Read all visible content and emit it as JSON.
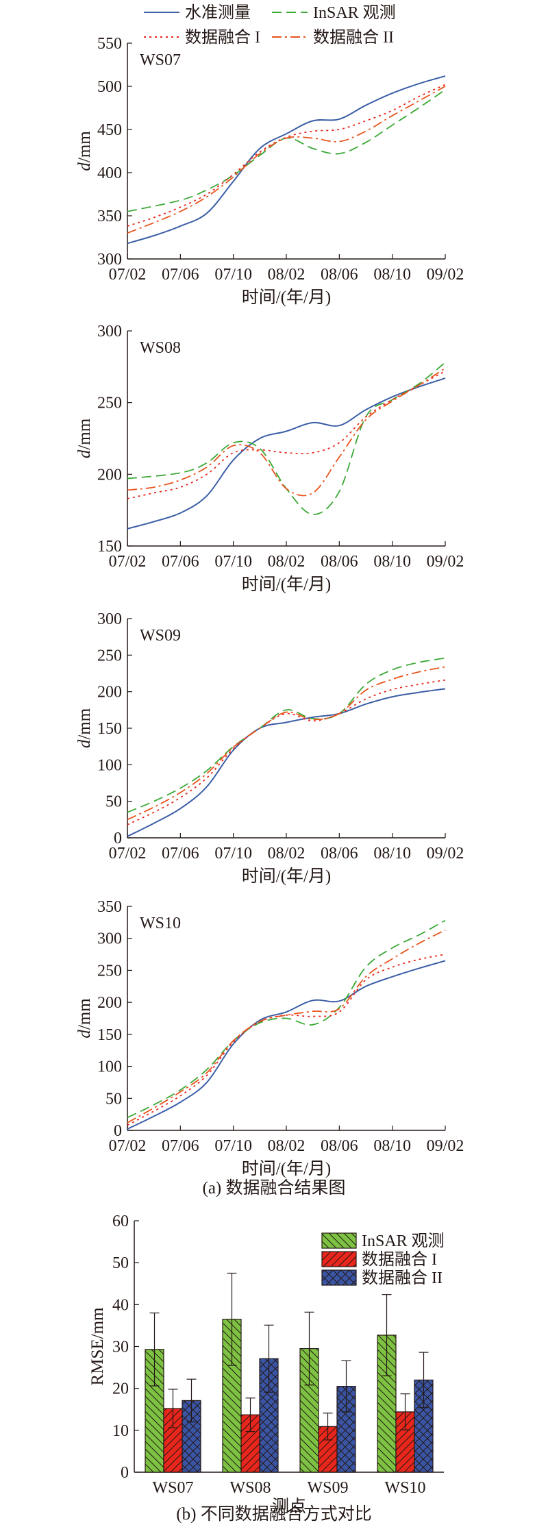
{
  "figure": {
    "legend_top": [
      {
        "label": "水准测量",
        "color": "#3b5ea6",
        "dash": "solid"
      },
      {
        "label": "InSAR 观测",
        "color": "#3aa935",
        "dash": "dashed"
      },
      {
        "label": "数据融合 I",
        "color": "#e8261c",
        "dash": "dotted"
      },
      {
        "label": "数据融合 II",
        "color": "#e8541c",
        "dash": "dashdot"
      }
    ],
    "caption_a": "(a) 数据融合结果图",
    "caption_b": "(b) 不同数据融合方式对比",
    "colors": {
      "level": "#3b5ea6",
      "insar": "#3aa935",
      "fusion1": "#e8261c",
      "fusion2": "#e8541c",
      "bar_insar": "#7dc242",
      "bar_f1": "#e8261c",
      "bar_f2": "#3a55a4"
    }
  },
  "chart_data": [
    {
      "type": "line",
      "panel": "WS07",
      "ylabel_italic": "d",
      "ylabel_unit": "/mm",
      "xlabel": "时间/(年/月)",
      "xticks": [
        "07/02",
        "07/06",
        "07/10",
        "08/02",
        "08/06",
        "08/10",
        "09/02"
      ],
      "ylim": [
        300,
        550
      ],
      "yticks": [
        300,
        350,
        400,
        450,
        500,
        550
      ],
      "series": [
        {
          "name": "水准测量",
          "key": "level",
          "points": [
            [
              0,
              318
            ],
            [
              0.5,
              327
            ],
            [
              1,
              338
            ],
            [
              1.5,
              353
            ],
            [
              2,
              390
            ],
            [
              2.5,
              428
            ],
            [
              3,
              445
            ],
            [
              3.5,
              460
            ],
            [
              4,
              462
            ],
            [
              4.5,
              478
            ],
            [
              5,
              492
            ],
            [
              5.5,
              503
            ],
            [
              6,
              512
            ]
          ]
        },
        {
          "name": "InSAR 观测",
          "key": "insar",
          "points": [
            [
              0,
              355
            ],
            [
              1,
              368
            ],
            [
              1.5,
              380
            ],
            [
              2,
              397
            ],
            [
              2.5,
              420
            ],
            [
              3,
              440
            ],
            [
              3.5,
              428
            ],
            [
              4,
              422
            ],
            [
              4.5,
              435
            ],
            [
              5,
              455
            ],
            [
              5.5,
              475
            ],
            [
              6,
              496
            ]
          ]
        },
        {
          "name": "数据融合 I",
          "key": "fusion1",
          "points": [
            [
              0,
              338
            ],
            [
              0.5,
              348
            ],
            [
              1,
              360
            ],
            [
              1.5,
              375
            ],
            [
              2,
              398
            ],
            [
              2.5,
              424
            ],
            [
              3,
              441
            ],
            [
              3.5,
              448
            ],
            [
              4,
              450
            ],
            [
              4.5,
              460
            ],
            [
              5,
              472
            ],
            [
              5.5,
              488
            ],
            [
              6,
              502
            ]
          ]
        },
        {
          "name": "数据融合 II",
          "key": "fusion2",
          "points": [
            [
              0,
              330
            ],
            [
              0.5,
              342
            ],
            [
              1,
              355
            ],
            [
              1.5,
              372
            ],
            [
              2,
              395
            ],
            [
              2.5,
              422
            ],
            [
              3,
              440
            ],
            [
              3.5,
              440
            ],
            [
              4,
              436
            ],
            [
              4.5,
              448
            ],
            [
              5,
              466
            ],
            [
              5.5,
              483
            ],
            [
              6,
              500
            ]
          ]
        }
      ]
    },
    {
      "type": "line",
      "panel": "WS08",
      "ylabel_italic": "d",
      "ylabel_unit": "/mm",
      "xlabel": "时间/(年/月)",
      "xticks": [
        "07/02",
        "07/06",
        "07/10",
        "08/02",
        "08/06",
        "08/10",
        "09/02"
      ],
      "ylim": [
        150,
        300
      ],
      "yticks": [
        150,
        200,
        250,
        300
      ],
      "series": [
        {
          "name": "水准测量",
          "key": "level",
          "points": [
            [
              0,
              162
            ],
            [
              0.5,
              167
            ],
            [
              1,
              173
            ],
            [
              1.5,
              185
            ],
            [
              2,
              210
            ],
            [
              2.5,
              225
            ],
            [
              3,
              230
            ],
            [
              3.5,
              236
            ],
            [
              4,
              234
            ],
            [
              4.5,
              245
            ],
            [
              5,
              254
            ],
            [
              5.5,
              261
            ],
            [
              6,
              267
            ]
          ]
        },
        {
          "name": "InSAR 观测",
          "key": "insar",
          "points": [
            [
              0,
              197
            ],
            [
              1,
              201
            ],
            [
              1.5,
              208
            ],
            [
              2,
              222
            ],
            [
              2.5,
              218
            ],
            [
              3,
              190
            ],
            [
              3.5,
              172
            ],
            [
              4,
              188
            ],
            [
              4.5,
              240
            ],
            [
              5,
              252
            ],
            [
              5.5,
              263
            ],
            [
              6,
              278
            ]
          ]
        },
        {
          "name": "数据融合 I",
          "key": "fusion1",
          "points": [
            [
              0,
              183
            ],
            [
              0.5,
              187
            ],
            [
              1,
              191
            ],
            [
              1.5,
              200
            ],
            [
              2,
              215
            ],
            [
              2.5,
              217
            ],
            [
              3,
              215
            ],
            [
              3.5,
              215
            ],
            [
              4,
              222
            ],
            [
              4.5,
              240
            ],
            [
              5,
              252
            ],
            [
              5.5,
              262
            ],
            [
              6,
              272
            ]
          ]
        },
        {
          "name": "数据融合 II",
          "key": "fusion2",
          "points": [
            [
              0,
              189
            ],
            [
              0.5,
              191
            ],
            [
              1,
              196
            ],
            [
              1.5,
              205
            ],
            [
              2,
              220
            ],
            [
              2.5,
              215
            ],
            [
              3,
              190
            ],
            [
              3.5,
              187
            ],
            [
              4,
              212
            ],
            [
              4.5,
              238
            ],
            [
              5,
              251
            ],
            [
              5.5,
              262
            ],
            [
              6,
              274
            ]
          ]
        }
      ]
    },
    {
      "type": "line",
      "panel": "WS09",
      "ylabel_italic": "d",
      "ylabel_unit": "/mm",
      "xlabel": "时间/(年/月)",
      "xticks": [
        "07/02",
        "07/06",
        "07/10",
        "08/02",
        "08/06",
        "08/10",
        "09/02"
      ],
      "ylim": [
        0,
        300
      ],
      "yticks": [
        0,
        50,
        100,
        150,
        200,
        250,
        300
      ],
      "series": [
        {
          "name": "水准测量",
          "key": "level",
          "points": [
            [
              0,
              2
            ],
            [
              0.5,
              20
            ],
            [
              1,
              40
            ],
            [
              1.5,
              70
            ],
            [
              2,
              120
            ],
            [
              2.5,
              150
            ],
            [
              3,
              158
            ],
            [
              3.5,
              165
            ],
            [
              4,
              170
            ],
            [
              4.5,
              183
            ],
            [
              5,
              193
            ],
            [
              5.5,
              199
            ],
            [
              6,
              204
            ]
          ]
        },
        {
          "name": "InSAR 观测",
          "key": "insar",
          "points": [
            [
              0,
              35
            ],
            [
              0.5,
              50
            ],
            [
              1,
              68
            ],
            [
              1.5,
              92
            ],
            [
              2,
              125
            ],
            [
              2.5,
              150
            ],
            [
              3,
              175
            ],
            [
              3.5,
              163
            ],
            [
              4,
              170
            ],
            [
              4.5,
              210
            ],
            [
              5,
              230
            ],
            [
              5.5,
              240
            ],
            [
              6,
              246
            ]
          ]
        },
        {
          "name": "数据融合 I",
          "key": "fusion1",
          "points": [
            [
              0,
              18
            ],
            [
              0.5,
              35
            ],
            [
              1,
              55
            ],
            [
              1.5,
              82
            ],
            [
              2,
              122
            ],
            [
              2.5,
              150
            ],
            [
              3,
              170
            ],
            [
              3.5,
              160
            ],
            [
              4,
              170
            ],
            [
              4.5,
              190
            ],
            [
              5,
              203
            ],
            [
              5.5,
              210
            ],
            [
              6,
              216
            ]
          ]
        },
        {
          "name": "数据融合 II",
          "key": "fusion2",
          "points": [
            [
              0,
              25
            ],
            [
              0.5,
              42
            ],
            [
              1,
              62
            ],
            [
              1.5,
              88
            ],
            [
              2,
              124
            ],
            [
              2.5,
              150
            ],
            [
              3,
              172
            ],
            [
              3.5,
              162
            ],
            [
              4,
              170
            ],
            [
              4.5,
              202
            ],
            [
              5,
              217
            ],
            [
              5.5,
              227
            ],
            [
              6,
              234
            ]
          ]
        }
      ]
    },
    {
      "type": "line",
      "panel": "WS10",
      "ylabel_italic": "d",
      "ylabel_unit": "/mm",
      "xlabel": "时间/(年/月)",
      "xticks": [
        "07/02",
        "07/06",
        "07/10",
        "08/02",
        "08/06",
        "08/10",
        "09/02"
      ],
      "ylim": [
        0,
        350
      ],
      "yticks": [
        0,
        50,
        100,
        150,
        200,
        250,
        300,
        350
      ],
      "series": [
        {
          "name": "水准测量",
          "key": "level",
          "points": [
            [
              0,
              2
            ],
            [
              0.5,
              22
            ],
            [
              1,
              44
            ],
            [
              1.5,
              75
            ],
            [
              2,
              135
            ],
            [
              2.5,
              172
            ],
            [
              3,
              185
            ],
            [
              3.5,
              203
            ],
            [
              4,
              202
            ],
            [
              4.5,
              225
            ],
            [
              5,
              240
            ],
            [
              5.5,
              253
            ],
            [
              6,
              265
            ]
          ]
        },
        {
          "name": "InSAR 观测",
          "key": "insar",
          "points": [
            [
              0,
              20
            ],
            [
              0.5,
              40
            ],
            [
              1,
              63
            ],
            [
              1.5,
              95
            ],
            [
              2,
              140
            ],
            [
              2.5,
              168
            ],
            [
              3,
              175
            ],
            [
              3.5,
              165
            ],
            [
              4,
              192
            ],
            [
              4.5,
              255
            ],
            [
              5,
              285
            ],
            [
              5.5,
              305
            ],
            [
              6,
              328
            ]
          ]
        },
        {
          "name": "数据融合 I",
          "key": "fusion1",
          "points": [
            [
              0,
              8
            ],
            [
              0.5,
              30
            ],
            [
              1,
              54
            ],
            [
              1.5,
              86
            ],
            [
              2,
              138
            ],
            [
              2.5,
              170
            ],
            [
              3,
              180
            ],
            [
              3.5,
              178
            ],
            [
              4,
              185
            ],
            [
              4.5,
              235
            ],
            [
              5,
              255
            ],
            [
              5.5,
              267
            ],
            [
              6,
              275
            ]
          ]
        },
        {
          "name": "数据融合 II",
          "key": "fusion2",
          "points": [
            [
              0,
              12
            ],
            [
              0.5,
              35
            ],
            [
              1,
              60
            ],
            [
              1.5,
              90
            ],
            [
              2,
              140
            ],
            [
              2.5,
              170
            ],
            [
              3,
              180
            ],
            [
              3.5,
              186
            ],
            [
              4,
              190
            ],
            [
              4.5,
              240
            ],
            [
              5,
              268
            ],
            [
              5.5,
              292
            ],
            [
              6,
              313
            ]
          ]
        }
      ]
    },
    {
      "type": "bar",
      "panel": "b",
      "ylabel": "RMSE/mm",
      "xlabel": "测点",
      "categories": [
        "WS07",
        "WS08",
        "WS09",
        "WS10"
      ],
      "ylim": [
        0,
        60
      ],
      "yticks": [
        0,
        10,
        20,
        30,
        40,
        50,
        60
      ],
      "series": [
        {
          "name": "InSAR 观测",
          "key": "bar_insar",
          "hatch": "back",
          "values": [
            29.3,
            36.5,
            29.5,
            32.7
          ],
          "errors": [
            8.7,
            11.0,
            8.7,
            9.7
          ]
        },
        {
          "name": "数据融合 I",
          "key": "bar_f1",
          "hatch": "fwd",
          "values": [
            15.2,
            13.7,
            10.9,
            14.4
          ],
          "errors": [
            4.6,
            4.0,
            3.2,
            4.3
          ]
        },
        {
          "name": "数据融合 II",
          "key": "bar_f2",
          "hatch": "cross",
          "values": [
            17.1,
            27.1,
            20.5,
            22.0
          ],
          "errors": [
            5.1,
            8.0,
            6.1,
            6.6
          ]
        }
      ]
    }
  ]
}
